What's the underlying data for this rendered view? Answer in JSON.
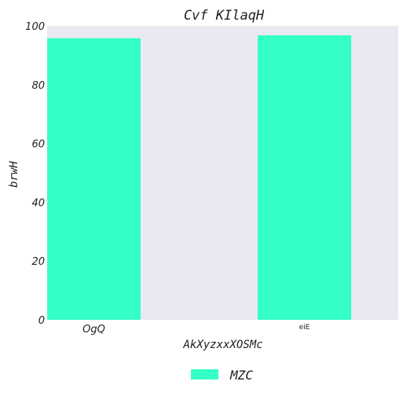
{
  "chart_data": {
    "type": "bar",
    "title": "Cvf KIlaqH",
    "xlabel": "AkXyzxxXOSMc",
    "ylabel": "brwH",
    "categories": [
      "OgQ",
      "eiE"
    ],
    "series": [
      {
        "name": "MZC",
        "values": [
          95.8,
          96.8
        ],
        "color": "#33ffc6"
      }
    ],
    "ylim": [
      0,
      100
    ],
    "yticks": [
      0,
      20,
      40,
      60,
      80,
      100
    ],
    "grid": false,
    "legend_placement": "bottom-center",
    "plot_background": "#e9e9f2"
  }
}
